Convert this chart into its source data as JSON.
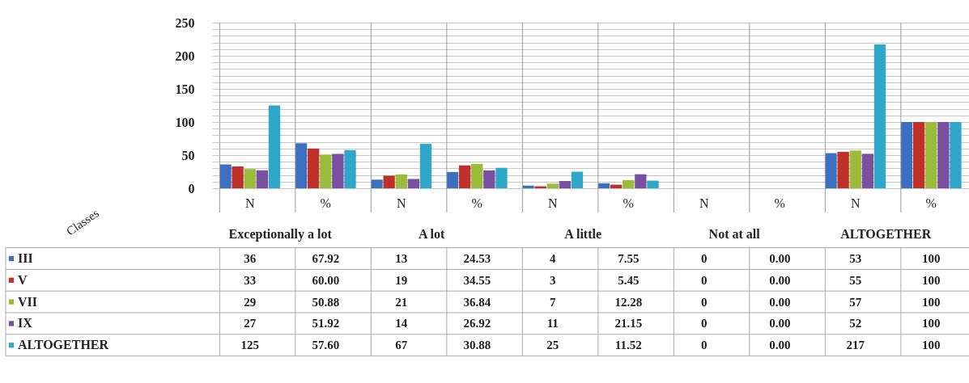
{
  "chart_data": {
    "type": "bar",
    "categories": [
      "N",
      "%",
      "N",
      "%",
      "N",
      "%",
      "N",
      "%",
      "N",
      "%"
    ],
    "annotations": [
      "Exceptionally a lot",
      "A lot",
      "A little",
      "Not at all",
      "ALTOGETHER"
    ],
    "legend_title": "Classes",
    "series": [
      {
        "name": "III",
        "color": "#3b6fc0",
        "values": [
          36,
          67.92,
          13,
          24.53,
          4,
          7.55,
          0,
          0,
          53,
          100
        ],
        "value_labels": [
          "36",
          "67.92",
          "13",
          "24.53",
          "4",
          "7.55",
          "0",
          "0.00",
          "53",
          "100"
        ]
      },
      {
        "name": "V",
        "color": "#c0302b",
        "values": [
          33,
          60,
          19,
          34.55,
          3,
          5.45,
          0,
          0,
          55,
          100
        ],
        "value_labels": [
          "33",
          "60.00",
          "19",
          "34.55",
          "3",
          "5.45",
          "0",
          "0.00",
          "55",
          "100"
        ]
      },
      {
        "name": "VII",
        "color": "#9bbb3b",
        "values": [
          29,
          50.88,
          21,
          36.84,
          7,
          12.28,
          0,
          0,
          57,
          100
        ],
        "value_labels": [
          "29",
          "50.88",
          "21",
          "36.84",
          "7",
          "12.28",
          "0",
          "0.00",
          "57",
          "100"
        ]
      },
      {
        "name": "IX",
        "color": "#7a4fa0",
        "values": [
          27,
          51.92,
          14,
          26.92,
          11,
          21.15,
          0,
          0,
          52,
          100
        ],
        "value_labels": [
          "27",
          "51.92",
          "14",
          "26.92",
          "11",
          "21.15",
          "0",
          "0.00",
          "52",
          "100"
        ]
      },
      {
        "name": "ALTOGETHER",
        "color": "#2ea7c8",
        "values": [
          125,
          57.6,
          67,
          30.88,
          25,
          11.52,
          0,
          0,
          217,
          100
        ],
        "value_labels": [
          "125",
          "57.60",
          "67",
          "30.88",
          "25",
          "11.52",
          "0",
          "0.00",
          "217",
          "100"
        ]
      }
    ],
    "ylim": [
      0,
      250
    ],
    "yticks": [
      0,
      {
        "value": 10,
        "label": null
      },
      {
        "value": 20,
        "label": null
      },
      {
        "value": 30,
        "label": null
      },
      {
        "value": 40,
        "label": null
      },
      50,
      {
        "value": 60,
        "label": null
      },
      {
        "value": 70,
        "label": null
      },
      {
        "value": 80,
        "label": null
      },
      {
        "value": 90,
        "label": null
      },
      100,
      {
        "value": 110,
        "label": null
      },
      {
        "value": 120,
        "label": null
      },
      {
        "value": 130,
        "label": null
      },
      {
        "value": 140,
        "label": null
      },
      150,
      {
        "value": 160,
        "label": null
      },
      {
        "value": 170,
        "label": null
      },
      {
        "value": 180,
        "label": null
      },
      {
        "value": 190,
        "label": null
      },
      200,
      {
        "value": 210,
        "label": null
      },
      {
        "value": 220,
        "label": null
      },
      {
        "value": 230,
        "label": null
      },
      {
        "value": 240,
        "label": null
      },
      250
    ],
    "grid": true,
    "legend": "bottom"
  }
}
